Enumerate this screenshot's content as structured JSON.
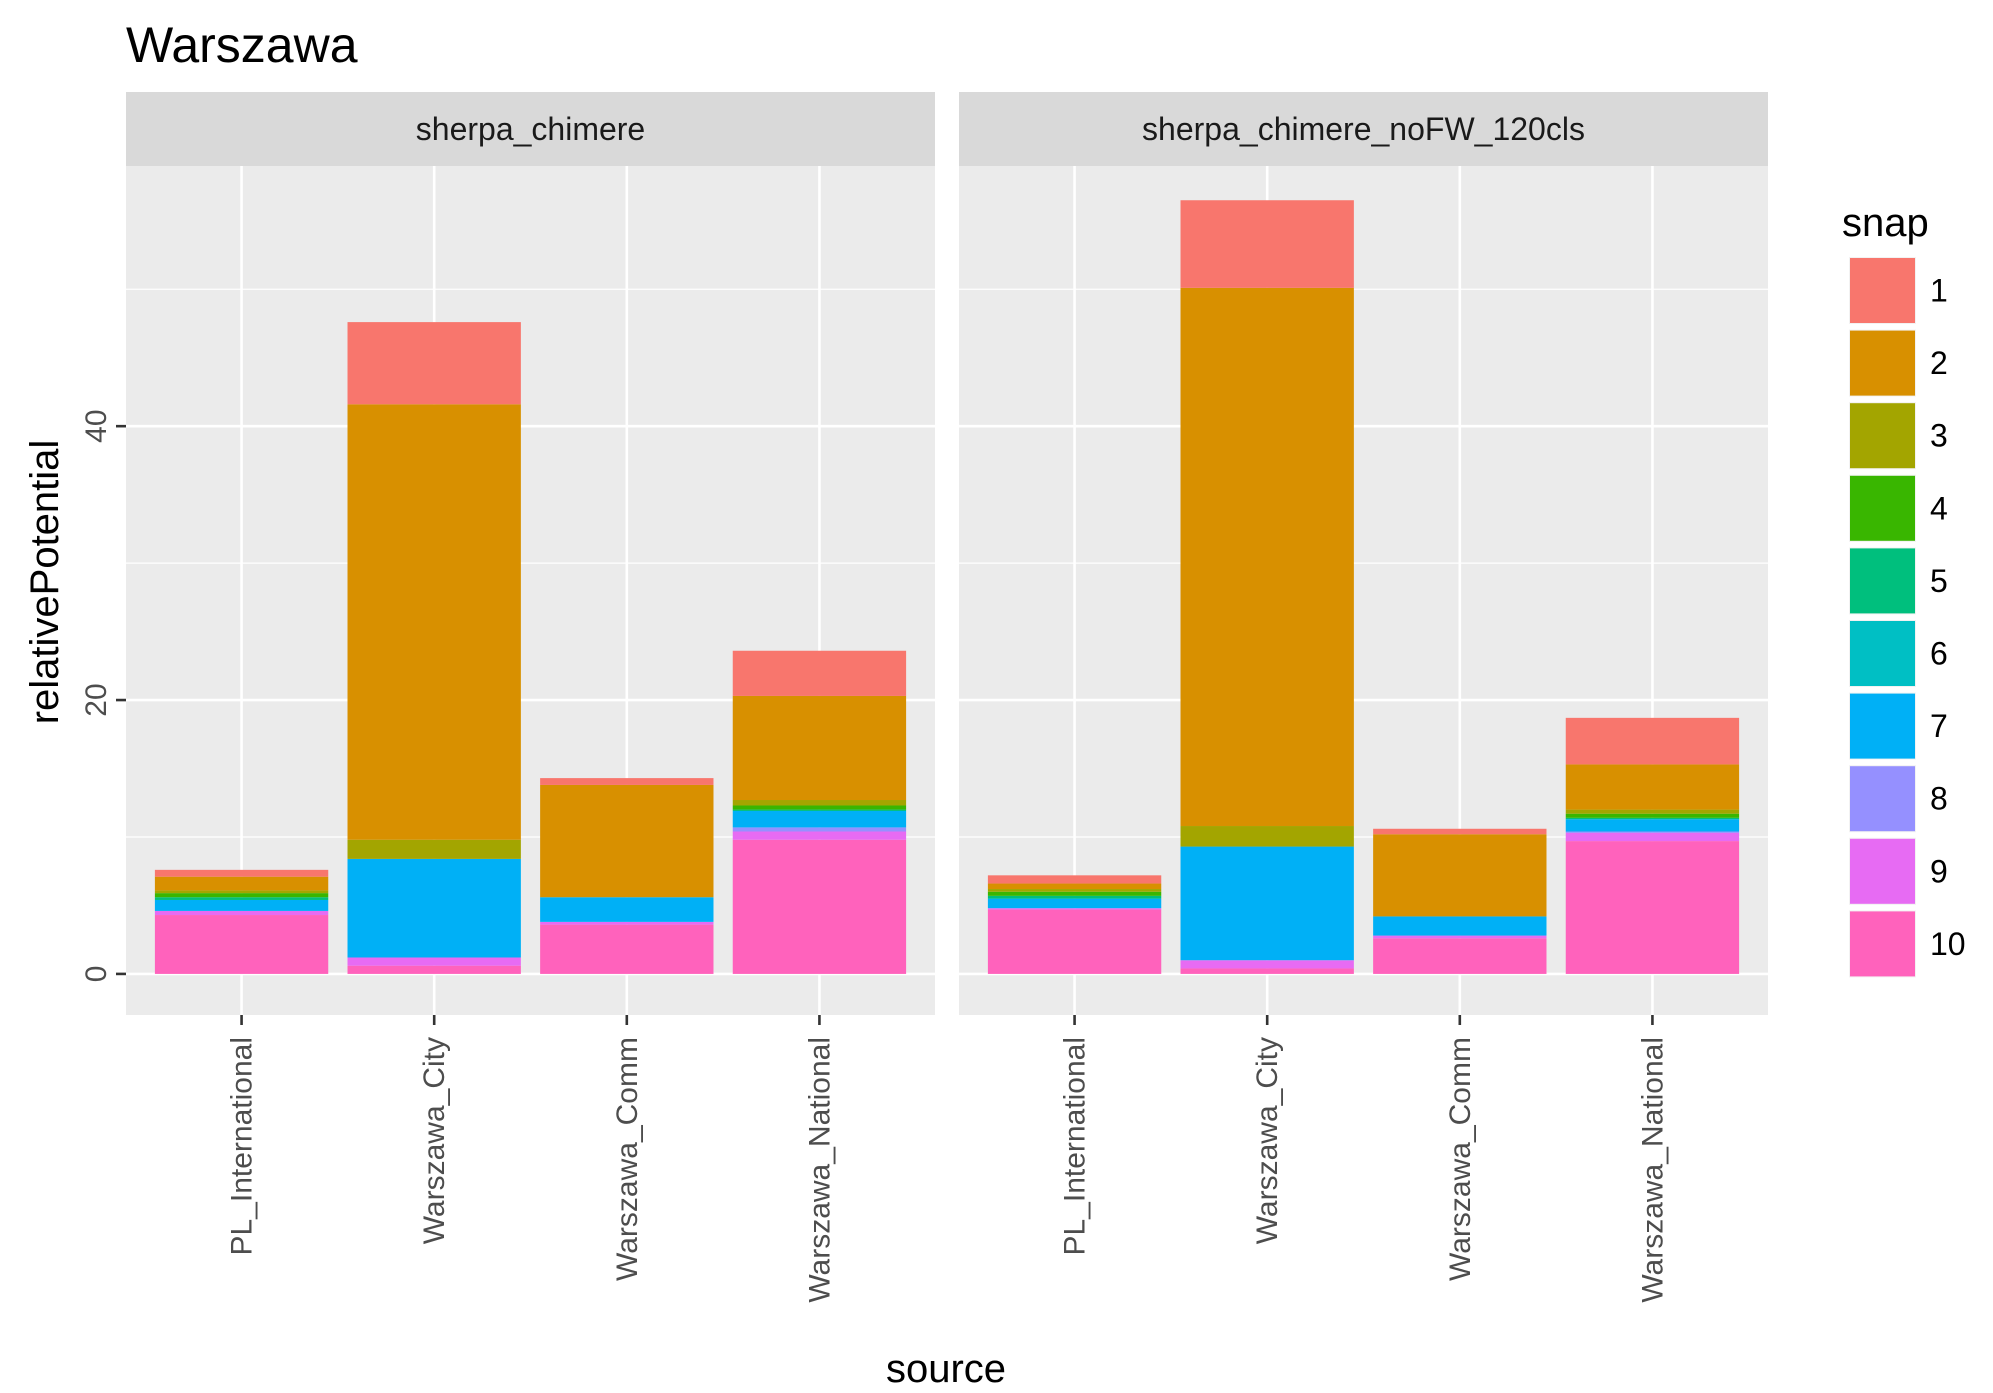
{
  "chart_data": {
    "type": "bar",
    "stacked": true,
    "title": "Warszawa",
    "xlabel": "source",
    "ylabel": "relativePotential",
    "ylim": [
      -3,
      59
    ],
    "y_ticks": [
      0,
      20,
      40
    ],
    "y_minor_ticks": [
      10,
      30,
      50
    ],
    "grid": true,
    "legend": {
      "title": "snap",
      "position": "right"
    },
    "categories": [
      "PL_International",
      "Warszawa_City",
      "Warszawa_Comm",
      "Warszawa_National"
    ],
    "stack_order": [
      "10",
      "9",
      "8",
      "7",
      "6",
      "5",
      "4",
      "3",
      "2",
      "1"
    ],
    "series_colors": {
      "1": "#F8766D",
      "2": "#D89000",
      "3": "#A3A500",
      "4": "#39B600",
      "5": "#00BF7D",
      "6": "#00BFC4",
      "7": "#00B0F6",
      "8": "#9590FF",
      "9": "#E76BF3",
      "10": "#FF62BC"
    },
    "panels": [
      {
        "name": "sherpa_chimere",
        "values": {
          "PL_International": {
            "10": 4.3,
            "9": 0.3,
            "8": 0.0,
            "7": 0.8,
            "6": 0.0,
            "5": 0.2,
            "4": 0.3,
            "3": 0.2,
            "2": 1.0,
            "1": 0.5
          },
          "Warszawa_City": {
            "10": 0.6,
            "9": 0.6,
            "8": 0.0,
            "7": 7.2,
            "6": 0.0,
            "5": 0.0,
            "4": 0.0,
            "3": 1.4,
            "2": 31.8,
            "1": 6.0
          },
          "Warszawa_Comm": {
            "10": 3.6,
            "9": 0.2,
            "8": 0.0,
            "7": 1.8,
            "6": 0.0,
            "5": 0.0,
            "4": 0.0,
            "3": 0.0,
            "2": 8.2,
            "1": 0.5
          },
          "Warszawa_National": {
            "10": 9.8,
            "9": 0.6,
            "8": 0.3,
            "7": 1.2,
            "6": 0.0,
            "5": 0.1,
            "4": 0.3,
            "3": 0.4,
            "2": 7.6,
            "1": 3.3
          }
        }
      },
      {
        "name": "sherpa_chimere_noFW_120cls",
        "values": {
          "PL_International": {
            "10": 4.7,
            "9": 0.1,
            "8": 0.0,
            "7": 0.7,
            "6": 0.0,
            "5": 0.2,
            "4": 0.3,
            "3": 0.2,
            "2": 0.4,
            "1": 0.6
          },
          "Warszawa_City": {
            "10": 0.4,
            "9": 0.6,
            "8": 0.0,
            "7": 8.3,
            "6": 0.0,
            "5": 0.0,
            "4": 0.0,
            "3": 1.5,
            "2": 39.3,
            "1": 6.4
          },
          "Warszawa_Comm": {
            "10": 2.6,
            "9": 0.2,
            "8": 0.0,
            "7": 1.4,
            "6": 0.0,
            "5": 0.0,
            "4": 0.0,
            "3": 0.0,
            "2": 6.0,
            "1": 0.4
          },
          "Warszawa_National": {
            "10": 9.7,
            "9": 0.6,
            "8": 0.1,
            "7": 0.9,
            "6": 0.0,
            "5": 0.1,
            "4": 0.3,
            "3": 0.3,
            "2": 3.3,
            "1": 3.4
          }
        }
      }
    ]
  }
}
